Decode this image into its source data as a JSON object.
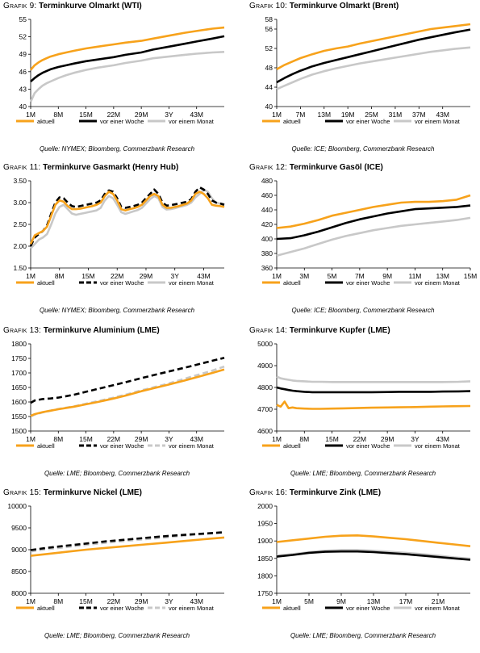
{
  "colors": {
    "aktuell": "#f7a21b",
    "woche": "#000000",
    "monat": "#c8c8c8"
  },
  "panels": [
    {
      "prefix": "Grafik 9:",
      "title": "Terminkurve Olmarkt (WTI)",
      "source": "Quelle: NYMEX; Bloomberg, Commerzbank Research"
    },
    {
      "prefix": "Grafik 10:",
      "title": "Terminkurve Olmarkt (Brent)",
      "source": "Quelle: ICE; Bloomberg, Commerzbank Research"
    },
    {
      "prefix": "Grafik 11:",
      "title": "Terminkurve Gasmarkt (Henry Hub)",
      "source": "Quelle: NYMEX; Bloomberg, Commerzbank Research"
    },
    {
      "prefix": "Grafik 12:",
      "title": "Terminkurve Gasöl (ICE)",
      "source": "Quelle: ICE; Bloomberg, Commerzbank Research"
    },
    {
      "prefix": "Grafik 13:",
      "title": "Terminkurve Aluminium (LME)",
      "source": "Quelle: LME; Bloomberg, Commerzbank Research"
    },
    {
      "prefix": "Grafik 14:",
      "title": "Terminkurve Kupfer (LME)",
      "source": "Quelle: LME; Bloomberg, Commerzbank Research"
    },
    {
      "prefix": "Grafik 15:",
      "title": "Terminkurve Nickel (LME)",
      "source": "Quelle: LME; Bloomberg, Commerzbank Research"
    },
    {
      "prefix": "Grafik 16:",
      "title": "Terminkurve Zink (LME)",
      "source": "Quelle: LME; Bloomberg, Commerzbank Research"
    }
  ],
  "chart_data": [
    {
      "type": "line",
      "ylim": [
        40,
        55
      ],
      "yticks": [
        40,
        43,
        46,
        49,
        52,
        55
      ],
      "xlabels": [
        "1M",
        "8M",
        "15M",
        "22M",
        "29M",
        "3Y",
        "43M"
      ],
      "xlabel_pos": [
        1,
        8,
        15,
        22,
        29,
        36,
        43
      ],
      "xrange": [
        1,
        50
      ],
      "legend": "bottom",
      "x": [
        1,
        2,
        3,
        4,
        5,
        6,
        8,
        10,
        12,
        15,
        18,
        22,
        25,
        29,
        32,
        36,
        40,
        43,
        47,
        50
      ],
      "series": [
        {
          "name": "aktuell",
          "values": [
            46.3,
            47.1,
            47.6,
            48.0,
            48.3,
            48.6,
            49.0,
            49.3,
            49.6,
            50.0,
            50.3,
            50.7,
            51.0,
            51.3,
            51.7,
            52.2,
            52.7,
            53.0,
            53.4,
            53.6
          ]
        },
        {
          "name": "vor einer Woche",
          "values": [
            44.3,
            44.9,
            45.4,
            45.8,
            46.1,
            46.4,
            46.8,
            47.1,
            47.4,
            47.8,
            48.1,
            48.5,
            48.9,
            49.3,
            49.8,
            50.3,
            50.8,
            51.2,
            51.7,
            52.1
          ]
        },
        {
          "name": "vor einem Monat",
          "values": [
            40.8,
            42.3,
            43.0,
            43.6,
            44.0,
            44.3,
            44.9,
            45.4,
            45.8,
            46.3,
            46.7,
            47.1,
            47.5,
            47.9,
            48.3,
            48.6,
            48.9,
            49.1,
            49.3,
            49.4
          ]
        }
      ]
    },
    {
      "type": "line",
      "ylim": [
        40,
        58
      ],
      "yticks": [
        40,
        44,
        48,
        52,
        56,
        58
      ],
      "xlabels": [
        "1M",
        "7M",
        "13M",
        "19M",
        "25M",
        "31M",
        "37M",
        "43M"
      ],
      "xlabel_pos": [
        1,
        7,
        13,
        19,
        25,
        31,
        37,
        43
      ],
      "xrange": [
        1,
        50
      ],
      "legend": "bottom",
      "x": [
        1,
        3,
        5,
        7,
        10,
        13,
        16,
        19,
        22,
        25,
        28,
        31,
        34,
        37,
        40,
        43,
        46,
        50
      ],
      "series": [
        {
          "name": "aktuell",
          "values": [
            47.7,
            48.6,
            49.3,
            50.0,
            50.8,
            51.5,
            52.0,
            52.4,
            53.0,
            53.5,
            54.0,
            54.5,
            55.0,
            55.5,
            56.0,
            56.3,
            56.6,
            57.0
          ]
        },
        {
          "name": "vor einer Woche",
          "values": [
            45.0,
            45.9,
            46.7,
            47.4,
            48.3,
            49.0,
            49.6,
            50.2,
            50.8,
            51.4,
            52.0,
            52.6,
            53.2,
            53.8,
            54.3,
            54.8,
            55.3,
            55.9
          ]
        },
        {
          "name": "vor einem Monat",
          "values": [
            43.6,
            44.3,
            45.0,
            45.7,
            46.6,
            47.3,
            47.9,
            48.4,
            48.9,
            49.3,
            49.7,
            50.1,
            50.5,
            50.9,
            51.3,
            51.6,
            51.9,
            52.2
          ]
        }
      ]
    },
    {
      "type": "line",
      "ylim": [
        1.5,
        3.5
      ],
      "yticks": [
        1.5,
        2.0,
        2.5,
        3.0,
        3.5
      ],
      "ytick_fmt": "2",
      "xlabels": [
        "1M",
        "8M",
        "15M",
        "22M",
        "29M",
        "3Y",
        "43M"
      ],
      "xlabel_pos": [
        1,
        8,
        15,
        22,
        29,
        36,
        43
      ],
      "xrange": [
        1,
        48
      ],
      "legend": "bottom",
      "x": [
        1,
        2,
        3,
        4,
        5,
        6,
        7,
        8,
        9,
        10,
        11,
        12,
        13,
        14,
        15,
        16,
        17,
        18,
        19,
        20,
        21,
        22,
        23,
        24,
        25,
        26,
        27,
        28,
        29,
        30,
        31,
        32,
        33,
        34,
        35,
        36,
        37,
        38,
        39,
        40,
        41,
        42,
        43,
        44,
        45,
        46,
        47,
        48
      ],
      "series": [
        {
          "name": "aktuell",
          "values": [
            2.05,
            2.25,
            2.3,
            2.35,
            2.45,
            2.7,
            2.95,
            3.05,
            3.02,
            2.92,
            2.85,
            2.85,
            2.86,
            2.88,
            2.9,
            2.92,
            2.95,
            3.0,
            3.15,
            3.25,
            3.2,
            3.05,
            2.85,
            2.82,
            2.85,
            2.87,
            2.9,
            2.95,
            3.05,
            3.15,
            3.2,
            3.15,
            2.95,
            2.88,
            2.88,
            2.9,
            2.92,
            2.95,
            2.98,
            3.05,
            3.2,
            3.25,
            3.2,
            3.1,
            2.95,
            2.93,
            2.92,
            2.9
          ]
        },
        {
          "name": "vor einer Woche",
          "values": [
            2.0,
            2.2,
            2.28,
            2.35,
            2.48,
            2.75,
            3.0,
            3.12,
            3.1,
            3.0,
            2.92,
            2.9,
            2.92,
            2.94,
            2.96,
            2.98,
            3.0,
            3.05,
            3.2,
            3.28,
            3.25,
            3.1,
            2.9,
            2.88,
            2.9,
            2.92,
            2.95,
            3.0,
            3.1,
            3.2,
            3.3,
            3.2,
            3.0,
            2.93,
            2.94,
            2.96,
            2.98,
            3.0,
            3.02,
            3.08,
            3.25,
            3.35,
            3.3,
            3.2,
            3.05,
            3.0,
            2.98,
            2.95
          ]
        },
        {
          "name": "vor einem Monat",
          "values": [
            1.95,
            2.05,
            2.15,
            2.2,
            2.28,
            2.5,
            2.75,
            2.9,
            2.95,
            2.85,
            2.75,
            2.72,
            2.74,
            2.76,
            2.78,
            2.8,
            2.82,
            2.88,
            3.05,
            3.15,
            3.1,
            2.95,
            2.78,
            2.74,
            2.77,
            2.8,
            2.83,
            2.88,
            2.98,
            3.08,
            3.15,
            3.1,
            2.9,
            2.84,
            2.85,
            2.87,
            2.9,
            2.92,
            2.95,
            3.0,
            3.12,
            3.2,
            3.3,
            3.25,
            3.1,
            3.0,
            2.98,
            2.97
          ]
        }
      ]
    },
    {
      "type": "line",
      "ylim": [
        360,
        480
      ],
      "yticks": [
        360,
        380,
        400,
        420,
        440,
        460,
        480
      ],
      "xlabels": [
        "1M",
        "3M",
        "5M",
        "7M",
        "9M",
        "11M",
        "13M",
        "15M"
      ],
      "xlabel_pos": [
        1,
        3,
        5,
        7,
        9,
        11,
        13,
        15
      ],
      "xrange": [
        1,
        15
      ],
      "legend": "bottom",
      "x": [
        1,
        2,
        3,
        4,
        5,
        6,
        7,
        8,
        9,
        10,
        11,
        12,
        13,
        14,
        15
      ],
      "series": [
        {
          "name": "aktuell",
          "values": [
            415,
            417,
            421,
            426,
            432,
            436,
            440,
            444,
            447,
            450,
            451,
            451,
            452,
            454,
            460
          ]
        },
        {
          "name": "vor einer Woche",
          "values": [
            400,
            401,
            405,
            410,
            416,
            422,
            427,
            431,
            435,
            438,
            441,
            442,
            443,
            444,
            446
          ]
        },
        {
          "name": "vor einem Monat",
          "values": [
            377,
            382,
            387,
            393,
            399,
            404,
            408,
            412,
            415,
            418,
            420,
            422,
            424,
            426,
            429
          ]
        }
      ]
    },
    {
      "type": "line",
      "ylim": [
        1500,
        1800
      ],
      "yticks": [
        1500,
        1550,
        1600,
        1650,
        1700,
        1750,
        1800
      ],
      "xlabels": [
        "1M",
        "8M",
        "15M",
        "22M",
        "29M",
        "3Y",
        "43M"
      ],
      "xlabel_pos": [
        1,
        8,
        15,
        22,
        29,
        36,
        43
      ],
      "xrange": [
        1,
        50
      ],
      "legend": "bottom",
      "x": [
        1,
        2,
        4,
        6,
        8,
        12,
        15,
        18,
        22,
        25,
        29,
        32,
        36,
        40,
        43,
        47,
        50
      ],
      "series": [
        {
          "name": "aktuell",
          "values": [
            1552,
            1558,
            1565,
            1570,
            1575,
            1584,
            1592,
            1600,
            1612,
            1622,
            1637,
            1647,
            1660,
            1674,
            1685,
            1700,
            1712
          ]
        },
        {
          "name": "vor einer Woche",
          "values": [
            1597,
            1605,
            1610,
            1612,
            1615,
            1625,
            1635,
            1645,
            1658,
            1668,
            1682,
            1692,
            1705,
            1718,
            1728,
            1742,
            1752
          ]
        },
        {
          "name": "vor einem Monat",
          "values": [
            1550,
            1556,
            1564,
            1570,
            1576,
            1585,
            1594,
            1603,
            1615,
            1625,
            1640,
            1650,
            1664,
            1680,
            1692,
            1708,
            1722
          ]
        }
      ]
    },
    {
      "type": "line",
      "ylim": [
        4600,
        5000
      ],
      "yticks": [
        4600,
        4700,
        4800,
        4900,
        5000
      ],
      "xlabels": [
        "1M",
        "8M",
        "15M",
        "22M",
        "29M",
        "3Y",
        "43M"
      ],
      "xlabel_pos": [
        1,
        8,
        15,
        22,
        29,
        36,
        43
      ],
      "xrange": [
        1,
        50
      ],
      "legend": "bottom",
      "x": [
        1,
        2,
        3,
        4,
        5,
        6,
        8,
        10,
        12,
        15,
        18,
        22,
        25,
        29,
        32,
        36,
        40,
        43,
        47,
        50
      ],
      "series": [
        {
          "name": "aktuell",
          "values": [
            4720,
            4712,
            4735,
            4705,
            4708,
            4705,
            4703,
            4702,
            4702,
            4703,
            4704,
            4706,
            4707,
            4708,
            4709,
            4710,
            4712,
            4713,
            4714,
            4715
          ]
        },
        {
          "name": "vor einer Woche",
          "values": [
            4800,
            4795,
            4792,
            4788,
            4785,
            4783,
            4780,
            4778,
            4778,
            4778,
            4778,
            4778,
            4778,
            4779,
            4780,
            4780,
            4780,
            4781,
            4782,
            4783
          ]
        },
        {
          "name": "vor einem Monat",
          "values": [
            4850,
            4842,
            4838,
            4835,
            4832,
            4830,
            4828,
            4826,
            4826,
            4825,
            4825,
            4825,
            4825,
            4825,
            4825,
            4825,
            4825,
            4825,
            4826,
            4828
          ]
        }
      ]
    },
    {
      "type": "line",
      "ylim": [
        8000,
        10000
      ],
      "yticks": [
        8000,
        8500,
        9000,
        9500,
        10000
      ],
      "xlabels": [
        "1M",
        "8M",
        "15M",
        "22M",
        "29M",
        "3Y",
        "43M"
      ],
      "xlabel_pos": [
        1,
        8,
        15,
        22,
        29,
        36,
        43
      ],
      "xrange": [
        1,
        50
      ],
      "legend": "bottom",
      "x": [
        1,
        5,
        10,
        15,
        20,
        25,
        30,
        35,
        40,
        45,
        50
      ],
      "series": [
        {
          "name": "aktuell",
          "values": [
            8860,
            8900,
            8950,
            9000,
            9040,
            9080,
            9120,
            9160,
            9200,
            9240,
            9280
          ]
        },
        {
          "name": "vor einer Woche",
          "values": [
            8990,
            9040,
            9090,
            9140,
            9190,
            9230,
            9270,
            9310,
            9340,
            9370,
            9400
          ]
        },
        {
          "name": "vor einem Monat",
          "values": [
            8960,
            9010,
            9060,
            9110,
            9160,
            9200,
            9240,
            9280,
            9320,
            9360,
            9390
          ]
        }
      ]
    },
    {
      "type": "line",
      "ylim": [
        1750,
        2000
      ],
      "yticks": [
        1750,
        1800,
        1850,
        1900,
        1950,
        2000
      ],
      "xlabels": [
        "1M",
        "5M",
        "9M",
        "13M",
        "17M",
        "21M"
      ],
      "xlabel_pos": [
        1,
        5,
        9,
        13,
        17,
        21
      ],
      "xrange": [
        1,
        25
      ],
      "legend": "bottom",
      "x": [
        1,
        3,
        5,
        7,
        9,
        11,
        13,
        15,
        17,
        19,
        21,
        23,
        25
      ],
      "series": [
        {
          "name": "aktuell",
          "values": [
            1897,
            1902,
            1907,
            1912,
            1915,
            1916,
            1913,
            1909,
            1905,
            1900,
            1895,
            1890,
            1885
          ]
        },
        {
          "name": "vor einer Woche",
          "values": [
            1855,
            1860,
            1866,
            1869,
            1870,
            1870,
            1868,
            1865,
            1862,
            1858,
            1854,
            1850,
            1846
          ]
        },
        {
          "name": "vor einem Monat",
          "values": [
            1858,
            1862,
            1868,
            1872,
            1874,
            1874,
            1872,
            1869,
            1866,
            1862,
            1858,
            1853,
            1849
          ]
        }
      ]
    }
  ]
}
